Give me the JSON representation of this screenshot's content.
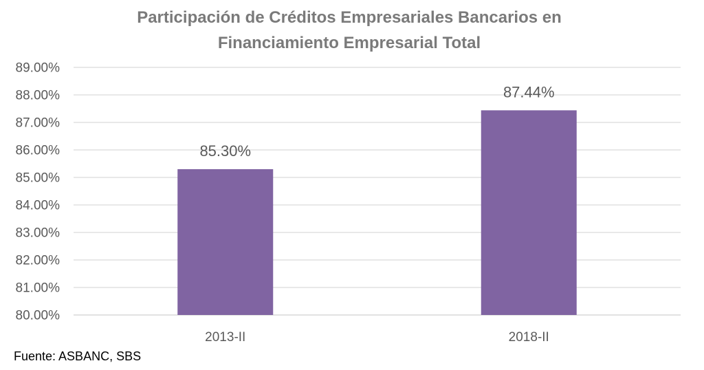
{
  "chart_data": {
    "type": "bar",
    "title_lines": [
      "Participación de Créditos Empresariales Bancarios en",
      "Financiamiento Empresarial Total"
    ],
    "categories": [
      "2013-II",
      "2018-II"
    ],
    "values": [
      85.3,
      87.44
    ],
    "data_labels": [
      "85.30%",
      "87.44%"
    ],
    "ylim": [
      80,
      89
    ],
    "y_ticks": [
      80,
      81,
      82,
      83,
      84,
      85,
      86,
      87,
      88,
      89
    ],
    "y_tick_labels": [
      "80.00%",
      "81.00%",
      "82.00%",
      "83.00%",
      "84.00%",
      "85.00%",
      "86.00%",
      "87.00%",
      "88.00%",
      "89.00%"
    ],
    "xlabel": "",
    "ylabel": "",
    "grid": true,
    "legend": "none",
    "bar_color": "#8064a2"
  },
  "source_note": "Fuente: ASBANC, SBS"
}
